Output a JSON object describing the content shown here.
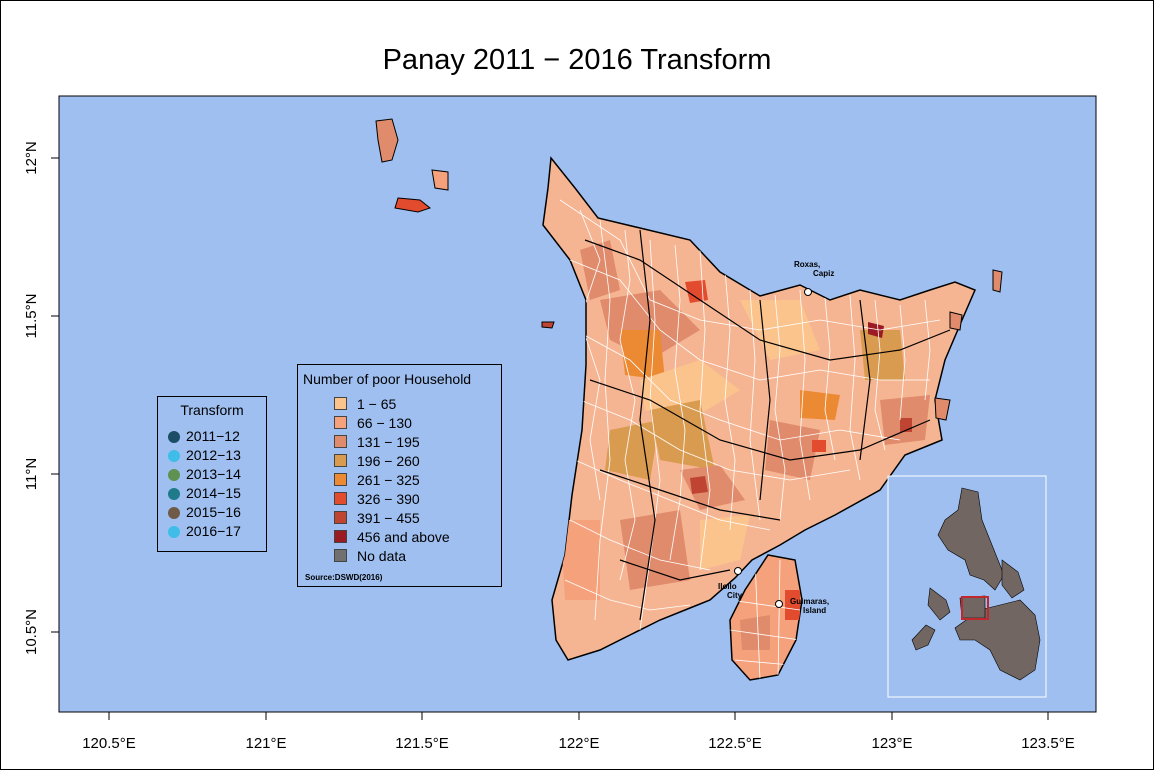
{
  "title": "Panay 2011 − 2016 Transform",
  "axes": {
    "x_ticks": [
      "120.5°E",
      "121°E",
      "121.5°E",
      "122°E",
      "122.5°E",
      "123°E",
      "123.5°E"
    ],
    "y_ticks": [
      "12°N",
      "11.5°N",
      "11°N",
      "10.5°N"
    ]
  },
  "colors": {
    "water": "#9ebff0",
    "boundary": "#ffffff",
    "province_boundary": "#000000",
    "inset_land": "#726663",
    "inset_highlight": "#c0282d"
  },
  "transform_legend": {
    "title": "Transform",
    "items": [
      {
        "label": "2011−12",
        "color": "#1c4d66"
      },
      {
        "label": "2012−13",
        "color": "#3ebde8"
      },
      {
        "label": "2013−14",
        "color": "#5f9150"
      },
      {
        "label": "2014−15",
        "color": "#1f7a8a"
      },
      {
        "label": "2015−16",
        "color": "#6f5a47"
      },
      {
        "label": "2016−17",
        "color": "#3ebde8"
      }
    ]
  },
  "poor_legend": {
    "title": "Number of poor Household",
    "items": [
      {
        "label": "1 − 65",
        "color": "#fbc48d"
      },
      {
        "label": "66 − 130",
        "color": "#f5a27c"
      },
      {
        "label": "131 − 195",
        "color": "#e08b6c"
      },
      {
        "label": "196 − 260",
        "color": "#d99b4f"
      },
      {
        "label": "261 − 325",
        "color": "#ec8a34"
      },
      {
        "label": "326 − 390",
        "color": "#e24b2e"
      },
      {
        "label": "391 − 455",
        "color": "#bf4532"
      },
      {
        "label": "456 and above",
        "color": "#9b1b22"
      },
      {
        "label": "No data",
        "color": "#707070"
      }
    ],
    "source": "Source:DSWD(2016)"
  },
  "cities": [
    {
      "label_lines": [
        "Roxas,",
        "Capiz"
      ]
    },
    {
      "label_lines": [
        "Iloilo",
        "City"
      ]
    },
    {
      "label_lines": [
        "Guimaras,",
        "Island"
      ]
    }
  ]
}
